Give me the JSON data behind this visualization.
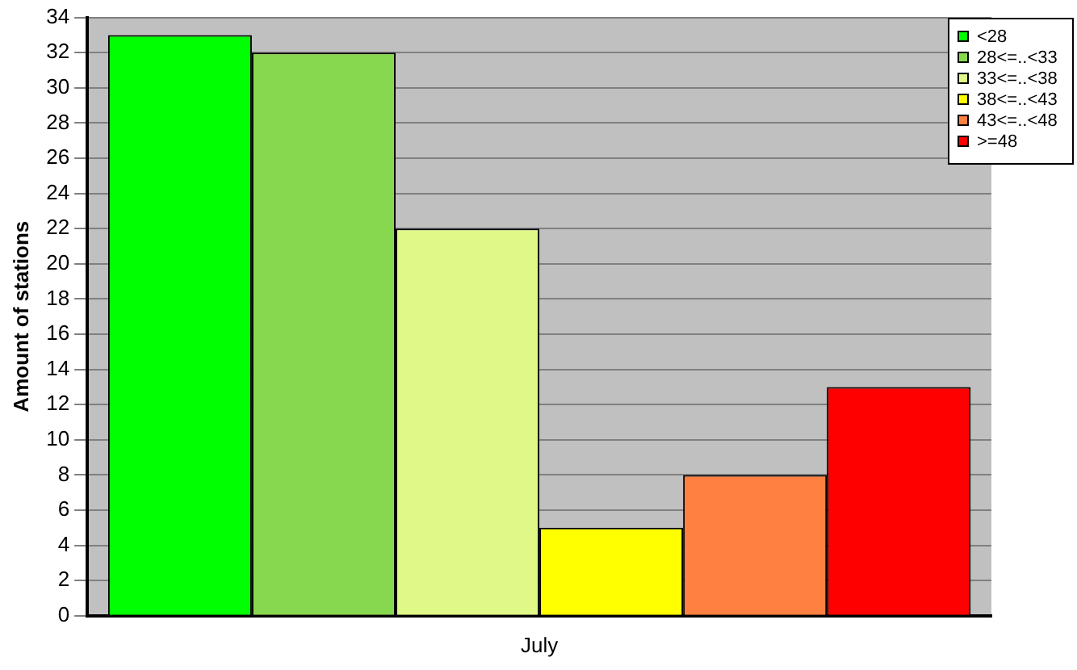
{
  "chart_data": {
    "type": "bar",
    "ylabel": "Amount of stations",
    "categories": [
      "July"
    ],
    "series": [
      {
        "name": "<28",
        "color": "#00ff00",
        "values": [
          33
        ]
      },
      {
        "name": "28<=..<33",
        "color": "#88d84f",
        "values": [
          32
        ]
      },
      {
        "name": "33<=..<38",
        "color": "#e0f888",
        "values": [
          22
        ]
      },
      {
        "name": "38<=..<43",
        "color": "#ffff00",
        "values": [
          5
        ]
      },
      {
        "name": "43<=..<48",
        "color": "#ff8040",
        "values": [
          8
        ]
      },
      {
        "name": ">=48",
        "color": "#ff0000",
        "values": [
          13
        ]
      }
    ],
    "ylim": [
      0,
      34
    ],
    "yticks": [
      0,
      2,
      4,
      6,
      8,
      10,
      12,
      14,
      16,
      18,
      20,
      22,
      24,
      26,
      28,
      30,
      32,
      34
    ],
    "grid": "y",
    "legend": "top right"
  }
}
